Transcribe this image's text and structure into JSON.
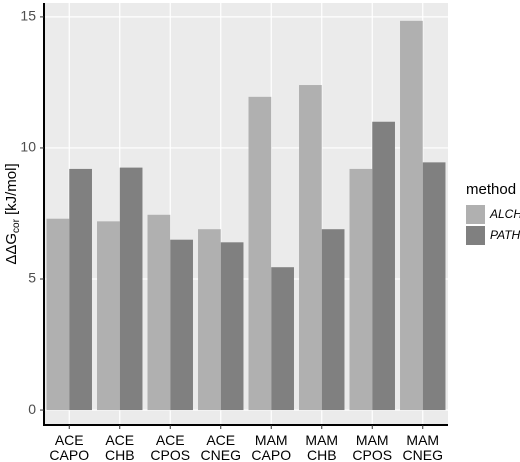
{
  "chart_data": {
    "type": "bar",
    "y_label": {
      "main": "ΔΔG",
      "sub": "cor",
      "unit": "[kJ/mol]"
    },
    "categories": [
      [
        "ACE",
        "CAPO"
      ],
      [
        "ACE",
        "CHB"
      ],
      [
        "ACE",
        "CPOS"
      ],
      [
        "ACE",
        "CNEG"
      ],
      [
        "MAM",
        "CAPO"
      ],
      [
        "MAM",
        "CHB"
      ],
      [
        "MAM",
        "CPOS"
      ],
      [
        "MAM",
        "CNEG"
      ]
    ],
    "series": [
      {
        "name": "ALCH",
        "color": "#b0b0b0",
        "values": [
          7.3,
          7.2,
          7.45,
          6.9,
          11.95,
          12.4,
          9.2,
          14.85
        ]
      },
      {
        "name": "PATH",
        "color": "#808080",
        "values": [
          9.2,
          9.25,
          6.5,
          6.4,
          5.45,
          6.9,
          11.0,
          9.45
        ]
      }
    ],
    "legend_title": "method",
    "ylim": [
      -0.57,
      15.53
    ],
    "yticks": [
      0,
      5,
      10,
      15
    ],
    "grid": true
  }
}
